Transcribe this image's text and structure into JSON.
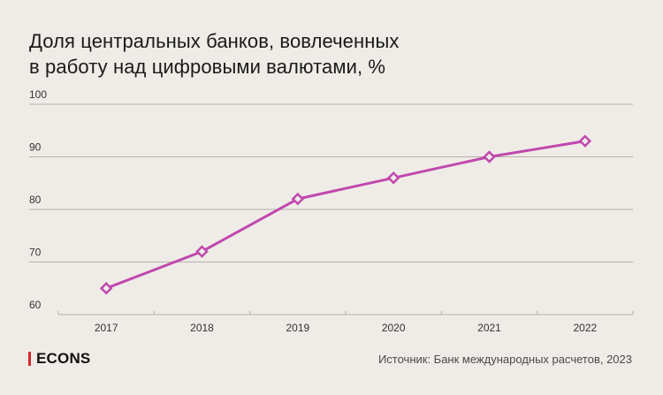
{
  "colors": {
    "background": "#efece7",
    "line": "#c048ad",
    "grid": "#b5b2ad",
    "brand_bar": "#d7282f"
  },
  "brand": {
    "name": "ECONS"
  },
  "source": "Источник: Банк международных расчетов, 2023",
  "chart_data": {
    "type": "line",
    "title_lines": [
      "Доля центральных банков, вовлеченных",
      "в работу над цифровыми валютами, %"
    ],
    "xlabel": "",
    "ylabel": "",
    "categories": [
      "2017",
      "2018",
      "2019",
      "2020",
      "2021",
      "2022"
    ],
    "yticks": [
      60,
      70,
      80,
      90,
      100
    ],
    "ylim": [
      60,
      100
    ],
    "grid": true,
    "series": [
      {
        "name": "Доля центральных банков",
        "values": [
          65,
          72,
          82,
          86,
          90,
          93
        ]
      }
    ]
  }
}
